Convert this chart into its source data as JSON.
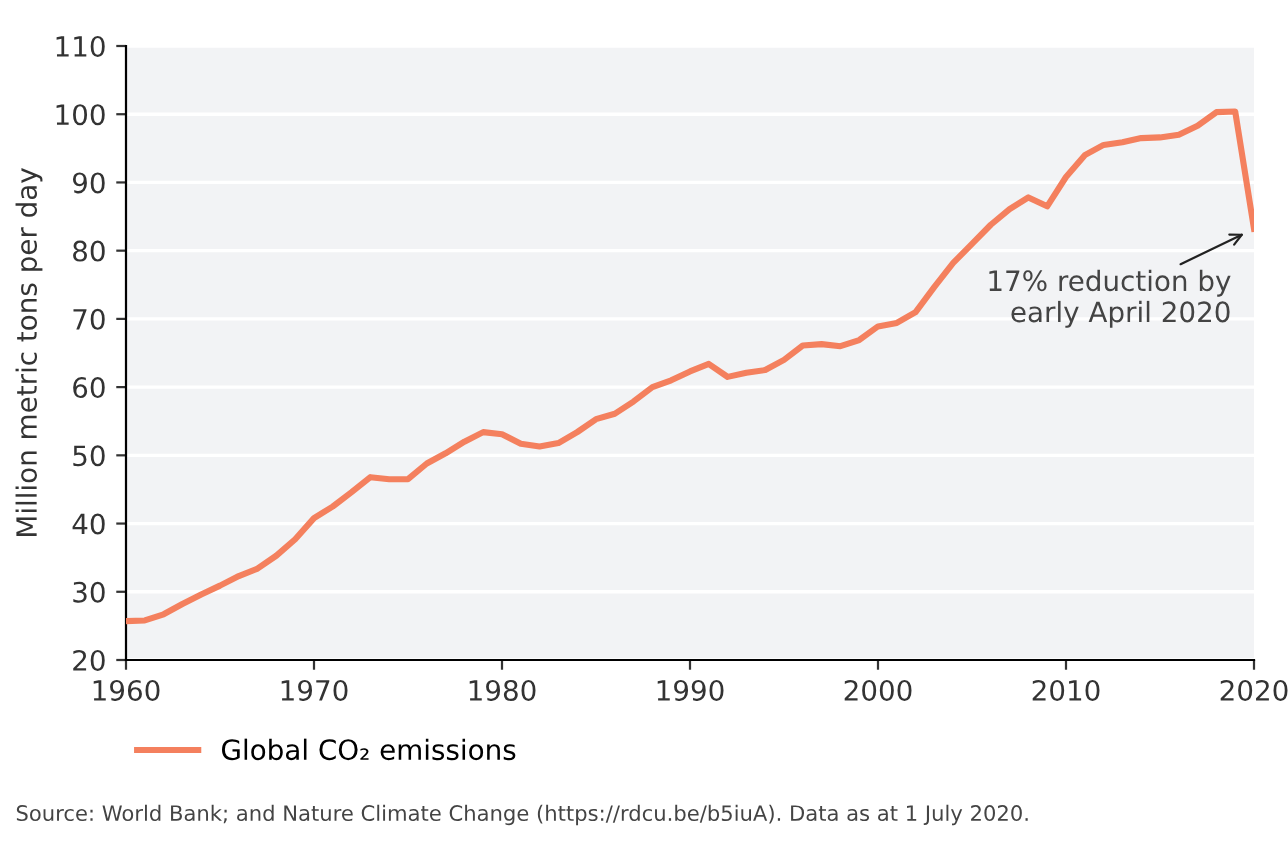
{
  "chart_data": {
    "type": "line",
    "ylabel": "Million metric tons per day",
    "x": [
      1960,
      1961,
      1962,
      1963,
      1964,
      1965,
      1966,
      1967,
      1968,
      1969,
      1970,
      1971,
      1972,
      1973,
      1974,
      1975,
      1976,
      1977,
      1978,
      1979,
      1980,
      1981,
      1982,
      1983,
      1984,
      1985,
      1986,
      1987,
      1988,
      1989,
      1990,
      1991,
      1992,
      1993,
      1994,
      1995,
      1996,
      1997,
      1998,
      1999,
      2000,
      2001,
      2002,
      2003,
      2004,
      2005,
      2006,
      2007,
      2008,
      2009,
      2010,
      2011,
      2012,
      2013,
      2014,
      2015,
      2016,
      2017,
      2018,
      2019,
      2020
    ],
    "series": [
      {
        "name": "Global CO₂ emissions",
        "color": "#f4805e",
        "values": [
          25.7,
          25.8,
          26.7,
          28.2,
          29.6,
          30.9,
          32.3,
          33.4,
          35.3,
          37.7,
          40.8,
          42.5,
          44.6,
          46.8,
          46.5,
          46.5,
          48.8,
          50.3,
          52.0,
          53.4,
          53.1,
          51.7,
          51.3,
          51.8,
          53.4,
          55.3,
          56.1,
          57.9,
          60.0,
          61.0,
          62.3,
          63.4,
          61.5,
          62.1,
          62.5,
          64.0,
          66.1,
          66.3,
          66.0,
          66.9,
          68.9,
          69.4,
          71.0,
          74.7,
          78.2,
          81.0,
          83.8,
          86.1,
          87.8,
          86.5,
          90.8,
          94.0,
          95.5,
          95.9,
          96.5,
          96.6,
          97.0,
          98.3,
          100.3,
          100.4,
          83.2
        ]
      }
    ],
    "xlim": [
      1960,
      2020
    ],
    "xticks": [
      1960,
      1970,
      1980,
      1990,
      2000,
      2010,
      2020
    ],
    "ylim": [
      20,
      110
    ],
    "yticks": [
      20,
      30,
      40,
      50,
      60,
      70,
      80,
      90,
      100,
      110
    ],
    "grid": "y",
    "legend": "bottom left",
    "marker": "none",
    "line_style": "solid",
    "annotations": [
      {
        "text": "17% reduction by\nearly April 2020",
        "x": 2020,
        "y": 83.2
      },
      "Source: World Bank; and Nature Climate Change (https://rdcu.be/b5iuA). Data as at 1 July 2020."
    ]
  }
}
